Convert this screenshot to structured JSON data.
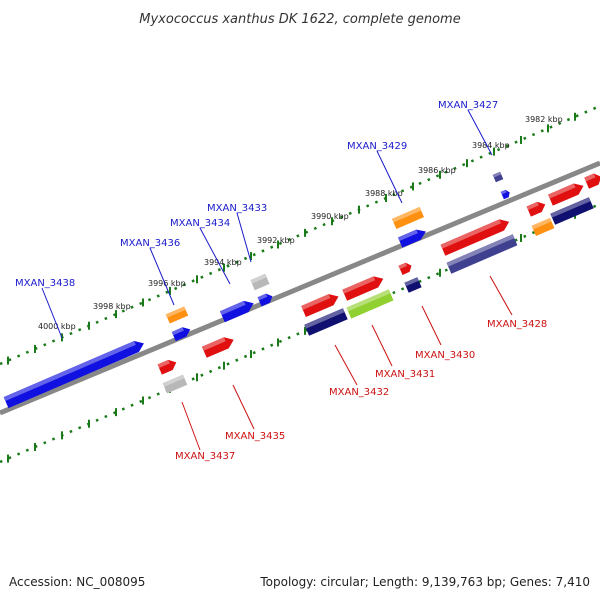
{
  "title": "Myxococcus xanthus DK 1622, complete genome",
  "footer": {
    "accession": "Accession: NC_008095",
    "topology": "Topology: circular; Length: 9,139,763 bp; Genes: 7,410"
  },
  "scale_labels": [
    "4000 kbp",
    "3998 kbp",
    "3996 kbp",
    "3994 kbp",
    "3992 kbp",
    "3990 kbp",
    "3988 kbp",
    "3986 kbp",
    "3984 kbp",
    "3982 kbp"
  ],
  "genes_forward": [
    "MXAN_3438",
    "MXAN_3436",
    "MXAN_3434",
    "MXAN_3433",
    "MXAN_3429",
    "MXAN_3427"
  ],
  "genes_reverse": [
    "MXAN_3437",
    "MXAN_3435",
    "MXAN_3432",
    "MXAN_3431",
    "MXAN_3430",
    "MXAN_3428"
  ],
  "colors": {
    "forward_label": "#1a1acc",
    "reverse_label": "#cc1111",
    "backbone": "#888888",
    "scale_dots": "#1a7a1a",
    "blue": "#1010e0",
    "red": "#e01010",
    "orange": "#ff9010",
    "navy": "#101070",
    "slate": "#404090",
    "gray": "#b8b8b8",
    "lime": "#90d030"
  }
}
